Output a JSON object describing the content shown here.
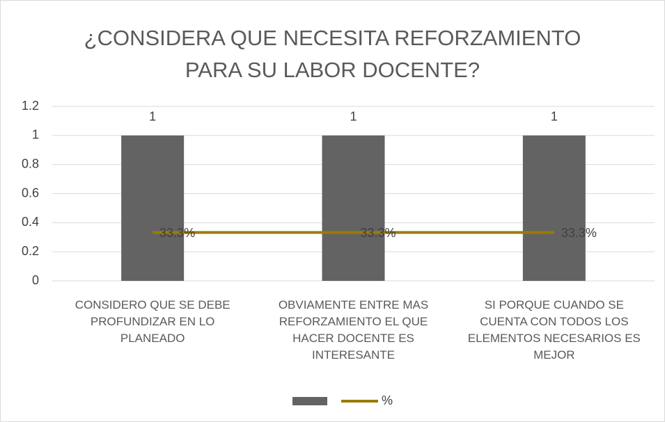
{
  "chart_data": {
    "type": "bar",
    "title": "¿CONSIDERA QUE NECESITA REFORZAMIENTO PARA SU LABOR DOCENTE?",
    "categories": [
      "CONSIDERO QUE SE DEBE PROFUNDIZAR EN LO PLANEADO",
      "OBVIAMENTE ENTRE MAS REFORZAMIENTO EL QUE HACER DOCENTE ES INTERESANTE",
      "SI PORQUE CUANDO SE CUENTA CON TODOS LOS ELEMENTOS NECESARIOS ES MEJOR"
    ],
    "series": [
      {
        "type": "bar",
        "color": "#636363",
        "values": [
          1,
          1,
          1
        ]
      },
      {
        "name": "%",
        "type": "line",
        "color": "#9c7b00",
        "values": [
          0.333,
          0.333,
          0.333
        ],
        "value_labels": [
          "33.3%",
          "33.3%",
          "33.3%"
        ]
      }
    ],
    "ylim": [
      0,
      1.2
    ],
    "yticks": [
      0,
      0.2,
      0.4,
      0.6,
      0.8,
      1,
      1.2
    ],
    "grid": true,
    "legend": "bottom"
  }
}
